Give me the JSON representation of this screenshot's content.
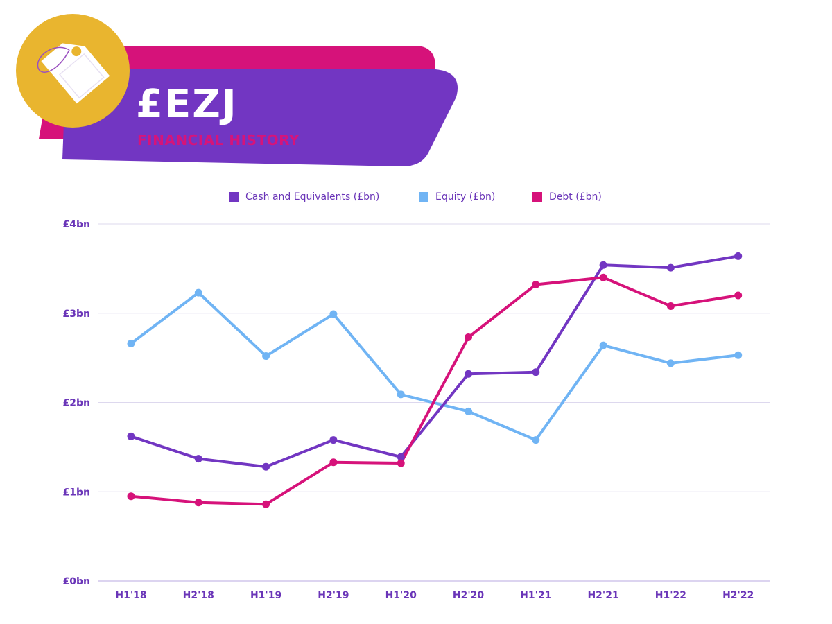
{
  "header": {
    "ticker": "£EZJ",
    "subtitle": "FINANCIAL HISTORY"
  },
  "colors": {
    "purple": "#7236c2",
    "magenta": "#d6127a",
    "gold": "#e9b52f",
    "light_blue": "#70b4f4",
    "grid": "#ddd8ee",
    "tick_text": "#6a35b8"
  },
  "icons": {
    "badge": "price-tag-icon"
  },
  "chart_data": {
    "type": "line",
    "categories": [
      "H1'18",
      "H2'18",
      "H1'19",
      "H2'19",
      "H1'20",
      "H2'20",
      "H1'21",
      "H2'21",
      "H1'22",
      "H2'22"
    ],
    "series": [
      {
        "name": "Cash and Equivalents (£bn)",
        "color": "#7236c2",
        "values": [
          1.62,
          1.37,
          1.28,
          1.58,
          1.39,
          2.32,
          2.34,
          3.54,
          3.51,
          3.64
        ]
      },
      {
        "name": "Equity (£bn)",
        "color": "#70b4f4",
        "values": [
          2.66,
          3.23,
          2.52,
          2.99,
          2.09,
          1.9,
          1.58,
          2.64,
          2.44,
          2.53
        ]
      },
      {
        "name": "Debt (£bn)",
        "color": "#d6127a",
        "values": [
          0.95,
          0.88,
          0.86,
          1.33,
          1.32,
          2.73,
          3.32,
          3.4,
          3.08,
          3.2
        ]
      }
    ],
    "yticks": [
      0,
      1,
      2,
      3,
      4
    ],
    "ytick_labels": [
      "£0bn",
      "£1bn",
      "£2bn",
      "£3bn",
      "£4bn"
    ],
    "ylim": [
      0,
      4
    ],
    "grid": true,
    "legend_position": "top-center"
  }
}
